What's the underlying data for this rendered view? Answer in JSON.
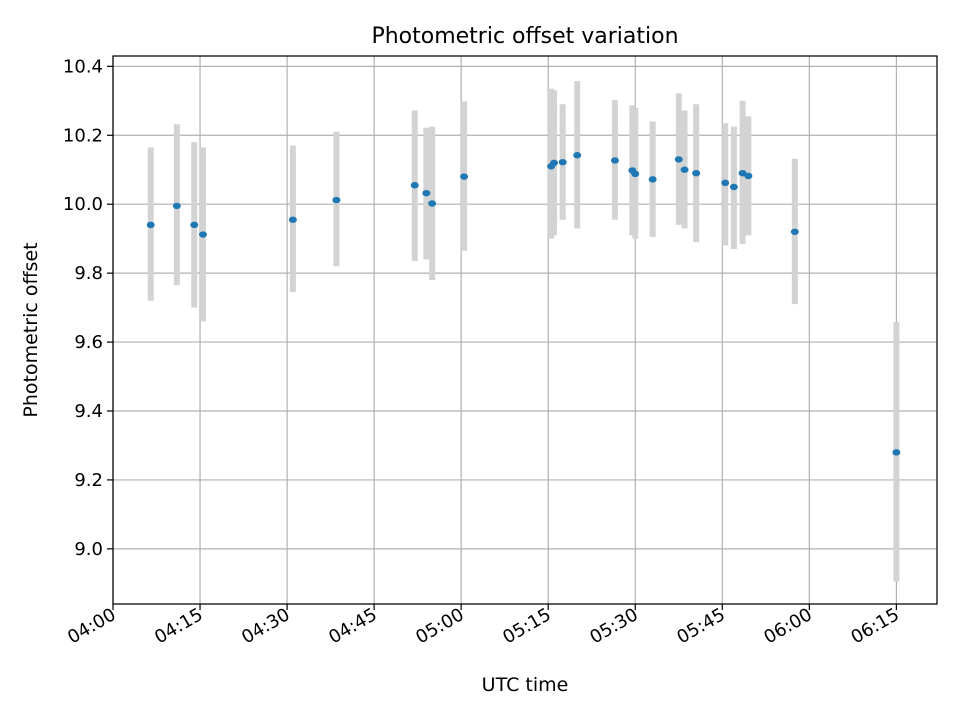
{
  "chart_data": {
    "type": "scatter",
    "title": "Photometric offset variation",
    "xlabel": "UTC time",
    "ylabel": "Photometric offset",
    "xlim": [
      "04:00",
      "06:22"
    ],
    "ylim": [
      8.84,
      10.43
    ],
    "x_ticks": [
      "04:00",
      "04:15",
      "04:30",
      "04:45",
      "05:00",
      "05:15",
      "05:30",
      "05:45",
      "06:00",
      "06:15"
    ],
    "y_ticks": [
      9.0,
      9.2,
      9.4,
      9.6,
      9.8,
      10.0,
      10.2,
      10.4
    ],
    "grid": true,
    "marker_color": "#1f77b4",
    "errorbar_color": "#d3d3d3",
    "points": [
      {
        "time": "04:06:30",
        "value": 9.94,
        "low": 9.72,
        "high": 10.165
      },
      {
        "time": "04:11:00",
        "value": 9.995,
        "low": 9.765,
        "high": 10.232
      },
      {
        "time": "04:14:00",
        "value": 9.94,
        "low": 9.7,
        "high": 10.18
      },
      {
        "time": "04:15:30",
        "value": 9.912,
        "low": 9.66,
        "high": 10.165
      },
      {
        "time": "04:31:00",
        "value": 9.955,
        "low": 9.745,
        "high": 10.17
      },
      {
        "time": "04:38:30",
        "value": 10.012,
        "low": 9.82,
        "high": 10.21
      },
      {
        "time": "04:52:00",
        "value": 10.055,
        "low": 9.835,
        "high": 10.272
      },
      {
        "time": "04:54:00",
        "value": 10.032,
        "low": 9.84,
        "high": 10.222
      },
      {
        "time": "04:55:00",
        "value": 10.002,
        "low": 9.78,
        "high": 10.225
      },
      {
        "time": "05:00:30",
        "value": 10.08,
        "low": 9.865,
        "high": 10.298
      },
      {
        "time": "05:15:30",
        "value": 10.11,
        "low": 9.9,
        "high": 10.335
      },
      {
        "time": "05:16:00",
        "value": 10.12,
        "low": 9.91,
        "high": 10.33
      },
      {
        "time": "05:17:30",
        "value": 10.122,
        "low": 9.955,
        "high": 10.29
      },
      {
        "time": "05:20:00",
        "value": 10.142,
        "low": 9.93,
        "high": 10.357
      },
      {
        "time": "05:26:30",
        "value": 10.127,
        "low": 9.955,
        "high": 10.302
      },
      {
        "time": "05:29:30",
        "value": 10.098,
        "low": 9.91,
        "high": 10.287
      },
      {
        "time": "05:30:00",
        "value": 10.088,
        "low": 9.9,
        "high": 10.28
      },
      {
        "time": "05:33:00",
        "value": 10.072,
        "low": 9.905,
        "high": 10.24
      },
      {
        "time": "05:37:30",
        "value": 10.13,
        "low": 9.94,
        "high": 10.322
      },
      {
        "time": "05:38:30",
        "value": 10.1,
        "low": 9.93,
        "high": 10.272
      },
      {
        "time": "05:40:30",
        "value": 10.09,
        "low": 9.89,
        "high": 10.29
      },
      {
        "time": "05:45:30",
        "value": 10.062,
        "low": 9.88,
        "high": 10.235
      },
      {
        "time": "05:47:00",
        "value": 10.05,
        "low": 9.87,
        "high": 10.225
      },
      {
        "time": "05:48:30",
        "value": 10.09,
        "low": 9.885,
        "high": 10.3
      },
      {
        "time": "05:49:30",
        "value": 10.082,
        "low": 9.91,
        "high": 10.255
      },
      {
        "time": "05:57:30",
        "value": 9.92,
        "low": 9.71,
        "high": 10.132
      },
      {
        "time": "06:15:00",
        "value": 9.28,
        "low": 8.905,
        "high": 9.658
      }
    ]
  }
}
